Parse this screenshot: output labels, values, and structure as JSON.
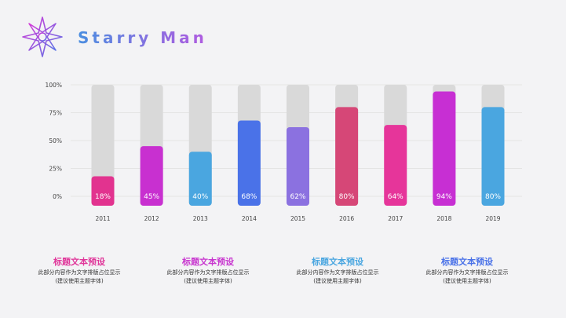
{
  "header": {
    "brand": "Starry Man",
    "logo_icon": "compass-star-icon"
  },
  "colors": {
    "track": "#d9d9d9",
    "grid": "#e4e4e4",
    "axis_text": "#444444",
    "bar_label": "#ffffff"
  },
  "chart_data": {
    "type": "bar",
    "categories": [
      "2011",
      "2012",
      "2013",
      "2014",
      "2015",
      "2016",
      "2017",
      "2018",
      "2019"
    ],
    "values": [
      18,
      45,
      40,
      68,
      62,
      80,
      64,
      94,
      80
    ],
    "data_labels": [
      "18%",
      "45%",
      "40%",
      "68%",
      "62%",
      "80%",
      "64%",
      "94%",
      "80%"
    ],
    "bar_colors": [
      "#e2338f",
      "#c830d0",
      "#4aa6e0",
      "#4a72e8",
      "#8b71e0",
      "#d64777",
      "#e6359a",
      "#c72fd3",
      "#4aa6e0"
    ],
    "yticks": [
      "100%",
      "75%",
      "50%",
      "25%",
      "0%"
    ],
    "ytick_values": [
      100,
      75,
      50,
      25,
      0
    ],
    "ylim": [
      0,
      100
    ],
    "grid": true,
    "legend": "none"
  },
  "cards": [
    {
      "title": "标题文本预设",
      "line1": "此部分内容作为文字排版占位显示",
      "line2": "(建议使用主题字体)",
      "color": "#e0379a"
    },
    {
      "title": "标题文本预设",
      "line1": "此部分内容作为文字排版占位显示",
      "line2": "(建议使用主题字体)",
      "color": "#c837cf"
    },
    {
      "title": "标题文本预设",
      "line1": "此部分内容作为文字排版占位显示",
      "line2": "(建议使用主题字体)",
      "color": "#4aa6e0"
    },
    {
      "title": "标题文本预设",
      "line1": "此部分内容作为文字排版占位显示",
      "line2": "(建议使用主题字体)",
      "color": "#4a72e8"
    }
  ]
}
